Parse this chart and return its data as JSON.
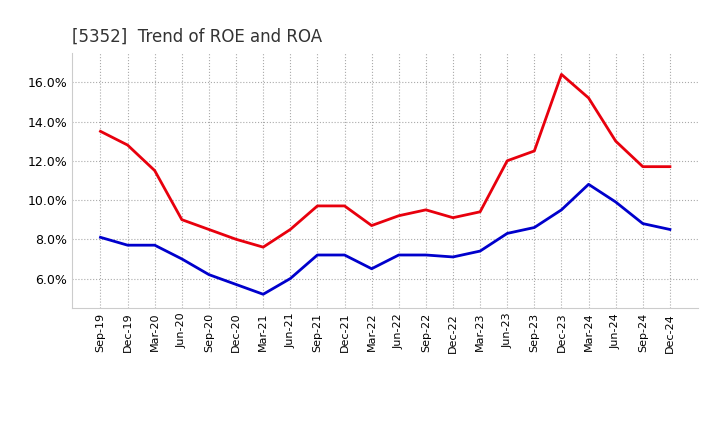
{
  "title": "[5352]  Trend of ROE and ROA",
  "x_labels": [
    "Sep-19",
    "Dec-19",
    "Mar-20",
    "Jun-20",
    "Sep-20",
    "Dec-20",
    "Mar-21",
    "Jun-21",
    "Sep-21",
    "Dec-21",
    "Mar-22",
    "Jun-22",
    "Sep-22",
    "Dec-22",
    "Mar-23",
    "Jun-23",
    "Sep-23",
    "Dec-23",
    "Mar-24",
    "Jun-24",
    "Sep-24",
    "Dec-24"
  ],
  "roe": [
    13.5,
    12.8,
    11.5,
    9.0,
    8.5,
    8.0,
    7.6,
    8.5,
    9.7,
    9.7,
    8.7,
    9.2,
    9.5,
    9.1,
    9.4,
    12.0,
    12.5,
    16.4,
    15.2,
    13.0,
    11.7,
    11.7
  ],
  "roa": [
    8.1,
    7.7,
    7.7,
    7.0,
    6.2,
    5.7,
    5.2,
    6.0,
    7.2,
    7.2,
    6.5,
    7.2,
    7.2,
    7.1,
    7.4,
    8.3,
    8.6,
    9.5,
    10.8,
    9.9,
    8.8,
    8.5
  ],
  "roe_color": "#e8000d",
  "roa_color": "#0000cc",
  "ylim_min": 4.5,
  "ylim_max": 17.5,
  "yticks": [
    6.0,
    8.0,
    10.0,
    12.0,
    14.0,
    16.0
  ],
  "background_color": "#ffffff",
  "grid_color": "#aaaaaa",
  "title_fontsize": 12,
  "axis_fontsize": 8,
  "line_width": 2.0
}
